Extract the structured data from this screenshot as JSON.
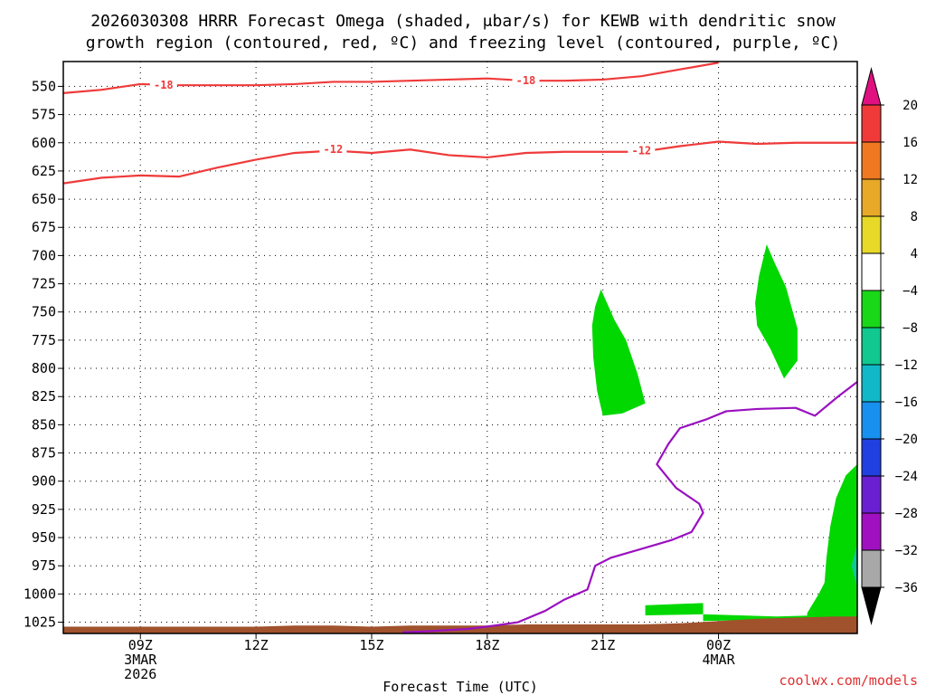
{
  "chart_data": {
    "type": "heatmap",
    "title_line1": "2026030308 HRRR Forecast Omega (shaded, μbar/s) for KEWB with dendritic snow",
    "title_line2": "growth region (contoured, red, ºC) and freezing level (contoured, purple, ºC)",
    "xlabel": "Forecast Time (UTC)",
    "credit": "coolwx.com/models",
    "x_unit": "hours since 2026-03-03 07Z",
    "x_range": [
      0,
      20.6
    ],
    "y_range": [
      1035,
      528
    ],
    "y_ticks": [
      550,
      575,
      600,
      625,
      650,
      675,
      700,
      725,
      750,
      775,
      800,
      825,
      850,
      875,
      900,
      925,
      950,
      975,
      1000,
      1025
    ],
    "x_ticks": [
      {
        "x": 2,
        "lines": [
          "09Z",
          "3MAR",
          "2026"
        ]
      },
      {
        "x": 5,
        "lines": [
          "12Z"
        ]
      },
      {
        "x": 8,
        "lines": [
          "15Z"
        ]
      },
      {
        "x": 11,
        "lines": [
          "18Z"
        ]
      },
      {
        "x": 14,
        "lines": [
          "21Z"
        ]
      },
      {
        "x": 17,
        "lines": [
          "00Z",
          "4MAR"
        ]
      }
    ],
    "colorbar": {
      "ticks": [
        "20",
        "16",
        "12",
        "8",
        "4",
        "−4",
        "−8",
        "−12",
        "−16",
        "−20",
        "−24",
        "−28",
        "−32",
        "−36"
      ],
      "colors": [
        "#f03a3a",
        "#f07820",
        "#e8a828",
        "#e8d828",
        "#ffffff",
        "#18d818",
        "#10c890",
        "#10b8c8",
        "#1890f0",
        "#2040e0",
        "#6a20d0",
        "#a010c0",
        "#a8a8a8"
      ],
      "top_arrow": "#e01080",
      "bottom_arrow": "#000000"
    },
    "contours": [
      {
        "name": "-18",
        "color": "#ef3a3a",
        "points": [
          [
            0,
            556
          ],
          [
            1,
            553
          ],
          [
            2,
            548
          ],
          [
            3,
            549
          ],
          [
            4,
            549
          ],
          [
            5,
            549
          ],
          [
            6,
            548
          ],
          [
            7,
            546
          ],
          [
            8,
            546
          ],
          [
            9,
            545
          ],
          [
            10,
            544
          ],
          [
            11,
            543
          ],
          [
            12,
            545
          ],
          [
            13,
            545
          ],
          [
            14,
            544
          ],
          [
            15,
            541
          ],
          [
            16,
            535
          ],
          [
            17,
            529
          ]
        ],
        "labels": [
          {
            "x": 2.6,
            "y": 549,
            "text": "-18"
          },
          {
            "x": 12.0,
            "y": 545,
            "text": "-18"
          }
        ]
      },
      {
        "name": "-12",
        "color": "#ef3a3a",
        "points": [
          [
            0,
            636
          ],
          [
            1,
            631
          ],
          [
            2,
            629
          ],
          [
            3,
            630
          ],
          [
            4,
            622
          ],
          [
            5,
            615
          ],
          [
            6,
            609
          ],
          [
            7,
            607
          ],
          [
            8,
            609
          ],
          [
            9,
            606
          ],
          [
            10,
            611
          ],
          [
            11,
            613
          ],
          [
            12,
            609
          ],
          [
            13,
            608
          ],
          [
            14,
            608
          ],
          [
            15,
            608
          ],
          [
            16,
            603
          ],
          [
            17,
            599
          ],
          [
            18,
            601
          ],
          [
            19,
            600
          ],
          [
            20.6,
            600
          ]
        ],
        "labels": [
          {
            "x": 7.0,
            "y": 606,
            "text": "-12"
          },
          {
            "x": 15.0,
            "y": 607,
            "text": "-12"
          }
        ]
      },
      {
        "name": "freezing level 0",
        "color": "#9a10c0",
        "points": [
          [
            8.8,
            1034
          ],
          [
            9.5,
            1033
          ],
          [
            10.5,
            1031
          ],
          [
            11.2,
            1028
          ],
          [
            11.8,
            1025
          ],
          [
            12.5,
            1015
          ],
          [
            13.0,
            1005
          ],
          [
            13.6,
            996
          ],
          [
            13.8,
            975
          ],
          [
            14.2,
            968
          ],
          [
            15.0,
            960
          ],
          [
            15.8,
            952
          ],
          [
            16.3,
            945
          ],
          [
            16.6,
            928
          ],
          [
            16.5,
            920
          ],
          [
            15.9,
            906
          ],
          [
            15.4,
            885
          ],
          [
            15.7,
            867
          ],
          [
            16.0,
            853
          ],
          [
            16.7,
            845
          ],
          [
            17.2,
            838
          ],
          [
            18.0,
            836
          ],
          [
            19.0,
            835
          ],
          [
            19.5,
            842
          ],
          [
            20.1,
            825
          ],
          [
            20.6,
            812
          ]
        ],
        "labels": []
      }
    ],
    "shaded_regions": [
      {
        "name": "omega -4 to -8 east of 21Z",
        "color": "#00d800",
        "points": [
          [
            13.8,
            745
          ],
          [
            13.95,
            730
          ],
          [
            14.3,
            757
          ],
          [
            14.6,
            775
          ],
          [
            14.9,
            805
          ],
          [
            15.1,
            831
          ],
          [
            14.5,
            840
          ],
          [
            14.0,
            842
          ],
          [
            13.85,
            820
          ],
          [
            13.75,
            790
          ],
          [
            13.72,
            762
          ]
        ]
      },
      {
        "name": "omega -4 to -8 near 02Z",
        "color": "#00d800",
        "points": [
          [
            18.05,
            718
          ],
          [
            18.25,
            690
          ],
          [
            18.45,
            706
          ],
          [
            18.75,
            728
          ],
          [
            19.05,
            765
          ],
          [
            19.05,
            793
          ],
          [
            18.7,
            809
          ],
          [
            18.35,
            783
          ],
          [
            18.0,
            762
          ],
          [
            17.95,
            742
          ]
        ]
      },
      {
        "name": "omega -4 to -8 low levels",
        "color": "#00d800",
        "points": [
          [
            19.3,
            1017
          ],
          [
            19.6,
            1000
          ],
          [
            19.75,
            990
          ],
          [
            19.8,
            968
          ],
          [
            19.9,
            940
          ],
          [
            20.05,
            915
          ],
          [
            20.3,
            895
          ],
          [
            20.6,
            885
          ],
          [
            20.6,
            1022
          ],
          [
            20.3,
            1021
          ],
          [
            19.3,
            1021
          ]
        ]
      },
      {
        "name": "omega -8 to -12 edge",
        "color": "#10c890",
        "points": [
          [
            20.6,
            955
          ],
          [
            20.45,
            975
          ],
          [
            20.6,
            995
          ]
        ]
      },
      {
        "name": "omega -4 to -8 strip near 23Z",
        "color": "#00d800",
        "points": [
          [
            15.1,
            1010
          ],
          [
            16.6,
            1008
          ],
          [
            16.6,
            1018
          ],
          [
            15.1,
            1019
          ]
        ]
      },
      {
        "name": "omega -4 to -8 strip near 00Z",
        "color": "#00d800",
        "points": [
          [
            16.6,
            1018
          ],
          [
            18.5,
            1020
          ],
          [
            19.5,
            1019
          ],
          [
            19.5,
            1022
          ],
          [
            18.0,
            1023
          ],
          [
            16.6,
            1024
          ]
        ]
      }
    ],
    "terrain": {
      "color": "#a0522d",
      "points": [
        [
          0,
          1029
        ],
        [
          1,
          1029
        ],
        [
          2,
          1029
        ],
        [
          3,
          1029
        ],
        [
          4,
          1029
        ],
        [
          5,
          1029
        ],
        [
          6,
          1028
        ],
        [
          7,
          1028
        ],
        [
          8,
          1029
        ],
        [
          9,
          1028
        ],
        [
          10,
          1028
        ],
        [
          11,
          1028
        ],
        [
          12,
          1027
        ],
        [
          13,
          1027
        ],
        [
          14,
          1027
        ],
        [
          15,
          1027
        ],
        [
          16,
          1026
        ],
        [
          17,
          1024
        ],
        [
          18,
          1022
        ],
        [
          19,
          1021
        ],
        [
          20,
          1020
        ],
        [
          20.6,
          1020
        ]
      ]
    }
  }
}
